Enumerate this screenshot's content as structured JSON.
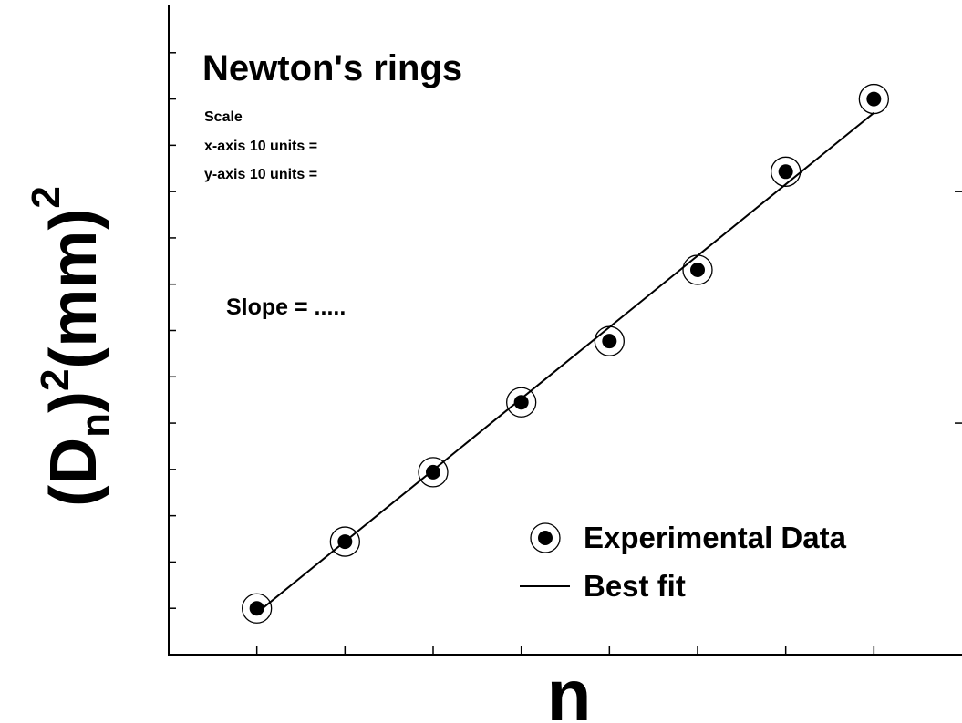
{
  "chart_data": {
    "type": "scatter",
    "title": "Newton's rings",
    "annotations": [
      "Scale",
      "x-axis 10 units =",
      "y-axis 10 units =",
      "Slope = ....."
    ],
    "xlabel": "n",
    "ylabel_parts": [
      "(D",
      "n",
      ")",
      "2",
      "(mm)",
      "2"
    ],
    "xlim": [
      0,
      9
    ],
    "ylim": [
      0,
      14
    ],
    "xticks": [
      1,
      2,
      3,
      4,
      5,
      6,
      7,
      8
    ],
    "yticks": [
      1,
      2,
      3,
      4,
      5,
      6,
      7,
      8,
      9,
      10,
      11,
      12,
      13
    ],
    "y2ticks": [
      5,
      10
    ],
    "grid": false,
    "legend": "bottom right",
    "series": [
      {
        "name": "Experimental Data",
        "color": "#000000",
        "kind": "points",
        "x": [
          1,
          2,
          3,
          4,
          5,
          6,
          7,
          8
        ],
        "values": [
          1.0,
          2.44,
          3.94,
          5.45,
          6.77,
          8.31,
          10.43,
          12.0
        ]
      },
      {
        "name": "Best fit",
        "color": "#000000",
        "kind": "line",
        "x": [
          1,
          8
        ],
        "values": [
          0.9,
          11.7
        ]
      }
    ]
  }
}
